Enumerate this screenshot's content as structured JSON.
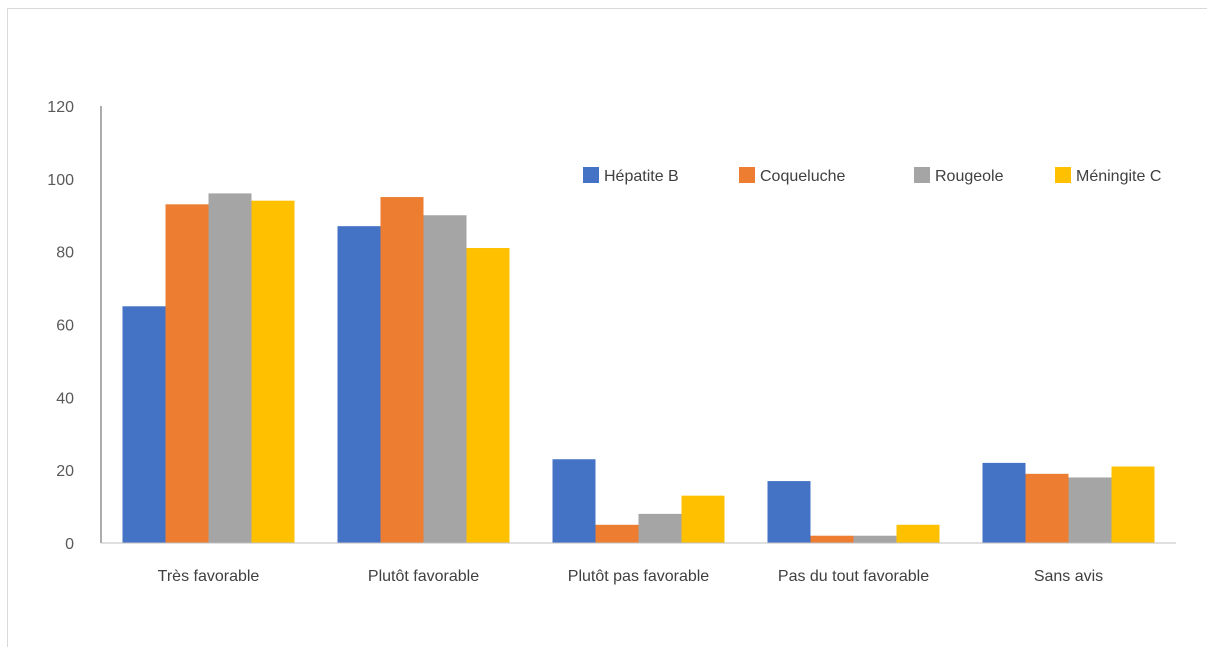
{
  "chart_data": {
    "type": "bar",
    "categories": [
      "Très favorable",
      "Plutôt favorable",
      "Plutôt pas favorable",
      "Pas du tout favorable",
      "Sans avis"
    ],
    "series": [
      {
        "name": "Hépatite B",
        "color": "#4472c4",
        "values": [
          65,
          87,
          23,
          17,
          22
        ]
      },
      {
        "name": "Coqueluche",
        "color": "#ed7d31",
        "values": [
          93,
          95,
          5,
          2,
          19
        ]
      },
      {
        "name": "Rougeole",
        "color": "#a5a5a5",
        "values": [
          96,
          90,
          8,
          2,
          18
        ]
      },
      {
        "name": "Méningite C",
        "color": "#ffc000",
        "values": [
          94,
          81,
          13,
          5,
          21
        ]
      }
    ],
    "ylim": [
      0,
      120
    ],
    "yticks": [
      0,
      20,
      40,
      60,
      80,
      100,
      120
    ],
    "grid": false,
    "legend_position": "top-right",
    "title": "",
    "xlabel": "",
    "ylabel": ""
  }
}
